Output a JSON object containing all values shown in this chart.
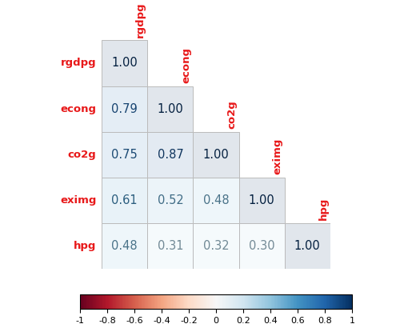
{
  "labels": [
    "rgdpg",
    "econg",
    "co2g",
    "eximg",
    "hpg"
  ],
  "corr_matrix": [
    [
      1.0,
      null,
      null,
      null,
      null
    ],
    [
      0.79,
      1.0,
      null,
      null,
      null
    ],
    [
      0.75,
      0.87,
      1.0,
      null,
      null
    ],
    [
      0.61,
      0.52,
      0.48,
      1.0,
      null
    ],
    [
      0.48,
      0.31,
      0.32,
      0.3,
      1.0
    ]
  ],
  "label_color": "#e8191a",
  "cell_edge_color": "#bbbbbb",
  "colorbar_ticks": [
    -1,
    -0.8,
    -0.6,
    -0.4,
    -0.2,
    0,
    0.2,
    0.4,
    0.6,
    0.8,
    1
  ]
}
